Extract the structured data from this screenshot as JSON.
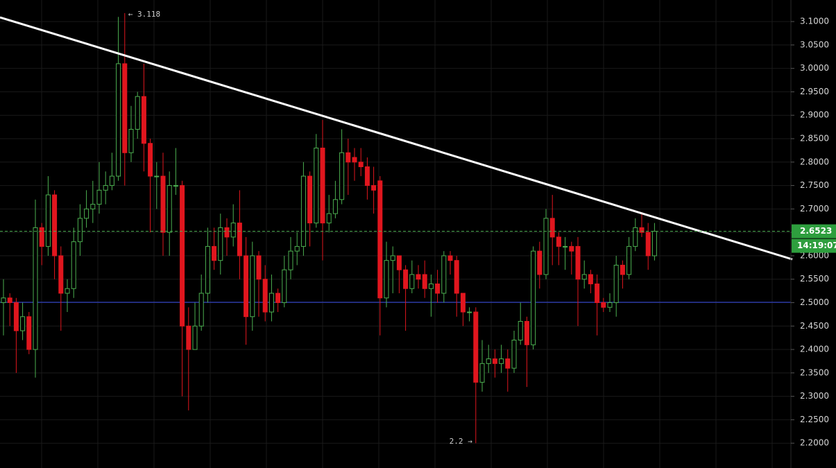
{
  "chart_data": {
    "type": "candlestick",
    "ylim": [
      2.147,
      3.146
    ],
    "yticks": [
      {
        "value": 2.2,
        "label": "2.2000"
      },
      {
        "value": 2.25,
        "label": "2.2500"
      },
      {
        "value": 2.3,
        "label": "2.3000"
      },
      {
        "value": 2.35,
        "label": "2.3500"
      },
      {
        "value": 2.4,
        "label": "2.4000"
      },
      {
        "value": 2.45,
        "label": "2.4500"
      },
      {
        "value": 2.5,
        "label": "2.5000"
      },
      {
        "value": 2.55,
        "label": "2.5500"
      },
      {
        "value": 2.6,
        "label": "2.6000"
      },
      {
        "value": 2.65,
        "label": "2.6500"
      },
      {
        "value": 2.7,
        "label": "2.7000"
      },
      {
        "value": 2.75,
        "label": "2.7500"
      },
      {
        "value": 2.8,
        "label": "2.8000"
      },
      {
        "value": 2.85,
        "label": "2.8500"
      },
      {
        "value": 2.9,
        "label": "2.9000"
      },
      {
        "value": 2.95,
        "label": "2.9500"
      },
      {
        "value": 3.0,
        "label": "3.0000"
      },
      {
        "value": 3.05,
        "label": "3.0500"
      },
      {
        "value": 3.1,
        "label": "3.1000"
      }
    ],
    "grid": true,
    "up_color": "#4caf50",
    "down_color": "#e0161e",
    "open": [
      2.5,
      2.51,
      2.5,
      2.44,
      2.47,
      2.4,
      2.66,
      2.62,
      2.73,
      2.6,
      2.52,
      2.53,
      2.63,
      2.68,
      2.7,
      2.71,
      2.74,
      2.75,
      2.77,
      3.01,
      2.82,
      2.87,
      2.94,
      2.84,
      2.77,
      2.77,
      2.65,
      2.75,
      2.75,
      2.45,
      2.4,
      2.45,
      2.52,
      2.62,
      2.59,
      2.66,
      2.64,
      2.67,
      2.6,
      2.47,
      2.6,
      2.55,
      2.48,
      2.52,
      2.5,
      2.57,
      2.61,
      2.62,
      2.77,
      2.67,
      2.83,
      2.67,
      2.69,
      2.72,
      2.82,
      2.81,
      2.8,
      2.79,
      2.75,
      2.76,
      2.51,
      2.59,
      2.6,
      2.57,
      2.53,
      2.56,
      2.56,
      2.53,
      2.54,
      2.52,
      2.6,
      2.59,
      2.52,
      2.48,
      2.48,
      2.33,
      2.37,
      2.38,
      2.37,
      2.38,
      2.36,
      2.42,
      2.46,
      2.41,
      2.61,
      2.56,
      2.68,
      2.64,
      2.62,
      2.62,
      2.62,
      2.55,
      2.56,
      2.54,
      2.5,
      2.49,
      2.5,
      2.58,
      2.56,
      2.62,
      2.66,
      2.65,
      2.6
    ],
    "high": [
      2.55,
      2.52,
      2.51,
      2.5,
      2.48,
      2.72,
      2.67,
      2.77,
      2.74,
      2.62,
      2.55,
      2.66,
      2.71,
      2.74,
      2.76,
      2.8,
      2.78,
      2.82,
      3.11,
      3.118,
      2.92,
      2.95,
      3.01,
      2.85,
      2.8,
      2.82,
      2.78,
      2.83,
      2.76,
      2.49,
      2.5,
      2.56,
      2.66,
      2.66,
      2.69,
      2.68,
      2.71,
      2.74,
      2.64,
      2.63,
      2.61,
      2.58,
      2.56,
      2.53,
      2.6,
      2.64,
      2.65,
      2.8,
      2.78,
      2.86,
      2.89,
      2.73,
      2.76,
      2.87,
      2.85,
      2.83,
      2.83,
      2.81,
      2.79,
      2.77,
      2.63,
      2.62,
      2.6,
      2.58,
      2.59,
      2.58,
      2.59,
      2.56,
      2.57,
      2.61,
      2.61,
      2.6,
      2.52,
      2.49,
      2.49,
      2.42,
      2.41,
      2.4,
      2.41,
      2.4,
      2.44,
      2.5,
      2.47,
      2.62,
      2.63,
      2.7,
      2.73,
      2.65,
      2.64,
      2.63,
      2.64,
      2.59,
      2.57,
      2.56,
      2.51,
      2.52,
      2.6,
      2.59,
      2.64,
      2.68,
      2.69,
      2.67,
      2.67
    ],
    "low": [
      2.43,
      2.45,
      2.35,
      2.42,
      2.39,
      2.34,
      2.58,
      2.6,
      2.55,
      2.44,
      2.48,
      2.51,
      2.6,
      2.66,
      2.67,
      2.69,
      2.71,
      2.74,
      2.76,
      2.75,
      2.8,
      2.85,
      2.78,
      2.65,
      2.7,
      2.6,
      2.6,
      2.73,
      2.3,
      2.27,
      2.4,
      2.44,
      2.5,
      2.57,
      2.56,
      2.6,
      2.62,
      2.55,
      2.41,
      2.44,
      2.47,
      2.46,
      2.46,
      2.48,
      2.49,
      2.55,
      2.58,
      2.6,
      2.62,
      2.66,
      2.59,
      2.65,
      2.68,
      2.71,
      2.73,
      2.76,
      2.77,
      2.72,
      2.69,
      2.43,
      2.49,
      2.52,
      2.52,
      2.44,
      2.52,
      2.53,
      2.51,
      2.47,
      2.5,
      2.5,
      2.56,
      2.47,
      2.45,
      2.46,
      2.2,
      2.31,
      2.35,
      2.34,
      2.35,
      2.31,
      2.35,
      2.41,
      2.32,
      2.4,
      2.53,
      2.55,
      2.58,
      2.58,
      2.57,
      2.56,
      2.45,
      2.53,
      2.52,
      2.43,
      2.48,
      2.48,
      2.47,
      2.53,
      2.55,
      2.61,
      2.64,
      2.57,
      2.59
    ],
    "close": [
      2.51,
      2.5,
      2.44,
      2.47,
      2.4,
      2.66,
      2.62,
      2.73,
      2.6,
      2.52,
      2.53,
      2.63,
      2.68,
      2.7,
      2.71,
      2.74,
      2.75,
      2.77,
      3.01,
      2.82,
      2.87,
      2.94,
      2.84,
      2.77,
      2.77,
      2.65,
      2.75,
      2.75,
      2.45,
      2.4,
      2.45,
      2.52,
      2.62,
      2.59,
      2.66,
      2.64,
      2.67,
      2.6,
      2.47,
      2.6,
      2.55,
      2.48,
      2.52,
      2.5,
      2.57,
      2.61,
      2.62,
      2.77,
      2.67,
      2.83,
      2.67,
      2.69,
      2.72,
      2.82,
      2.8,
      2.8,
      2.79,
      2.75,
      2.74,
      2.51,
      2.59,
      2.6,
      2.57,
      2.53,
      2.56,
      2.55,
      2.53,
      2.54,
      2.52,
      2.6,
      2.59,
      2.52,
      2.48,
      2.48,
      2.33,
      2.37,
      2.38,
      2.37,
      2.38,
      2.36,
      2.42,
      2.46,
      2.41,
      2.61,
      2.56,
      2.68,
      2.64,
      2.62,
      2.62,
      2.61,
      2.55,
      2.56,
      2.54,
      2.5,
      2.49,
      2.5,
      2.58,
      2.56,
      2.62,
      2.66,
      2.65,
      2.6,
      2.6523
    ],
    "last_price": 2.6523,
    "countdown": "14:19:07",
    "annotations": [
      "← 3.118",
      "2.2 →"
    ]
  }
}
